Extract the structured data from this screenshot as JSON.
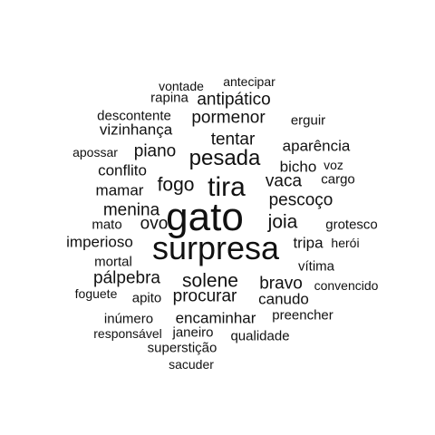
{
  "cloud": {
    "text_color": "#111111",
    "background": "#ffffff",
    "words": [
      "vontade",
      "antecipar",
      "rapina",
      "antipático",
      "descontente",
      "pormenor",
      "erguir",
      "vizinhança",
      "tentar",
      "aparência",
      "apossar",
      "piano",
      "pesada",
      "bicho",
      "voz",
      "conflito",
      "fogo",
      "tira",
      "vaca",
      "cargo",
      "mamar",
      "pescoço",
      "menina",
      "gato",
      "ovo",
      "joia",
      "mato",
      "grotesco",
      "imperioso",
      "surpresa",
      "tripa",
      "herói",
      "mortal",
      "vítima",
      "pálpebra",
      "solene",
      "bravo",
      "convencido",
      "foguete",
      "apito",
      "procurar",
      "canudo",
      "inúmero",
      "encaminhar",
      "preencher",
      "responsável",
      "janeiro",
      "qualidade",
      "superstição",
      "sacuder"
    ]
  }
}
